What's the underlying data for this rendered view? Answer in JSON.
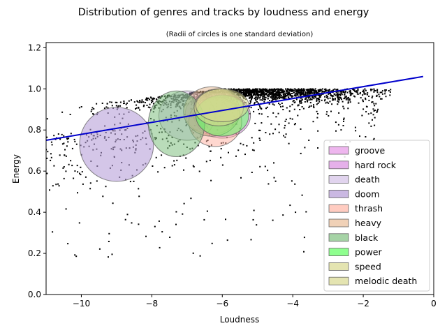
{
  "chart_data": {
    "type": "scatter",
    "title": "Distribution of genres and tracks by loudness and energy",
    "subtitle": "(Radii of circles is one standard deviation)",
    "xlabel": "Loudness",
    "ylabel": "Energy",
    "xlim": [
      -11,
      0
    ],
    "ylim": [
      0,
      1.225
    ],
    "xticks": [
      -10,
      -8,
      -6,
      -4,
      -2,
      0
    ],
    "xtick_labels": [
      "−10",
      "−8",
      "−6",
      "−4",
      "−2",
      "0"
    ],
    "yticks": [
      0.0,
      0.2,
      0.4,
      0.6,
      0.8,
      1.0,
      1.2
    ],
    "ytick_labels": [
      "0.0",
      "0.2",
      "0.4",
      "0.6",
      "0.8",
      "1.0",
      "1.2"
    ],
    "grid": false,
    "legend_position": "lower-right",
    "trend_line": {
      "x": [
        -11,
        -0.3
      ],
      "y": [
        0.75,
        1.06
      ],
      "color": "#0000cc"
    },
    "genres": [
      {
        "name": "groove",
        "color": "#e07ae0",
        "mean_x": -6.3,
        "mean_y": 0.88,
        "sd_x": 0.75,
        "sd_y": 0.1,
        "alpha": 0.4
      },
      {
        "name": "hard rock",
        "color": "#d070d8",
        "mean_x": -6.0,
        "mean_y": 0.87,
        "sd_x": 0.8,
        "sd_y": 0.11,
        "alpha": 0.4
      },
      {
        "name": "death",
        "color": "#c8b0e0",
        "mean_x": -7.0,
        "mean_y": 0.87,
        "sd_x": 0.8,
        "sd_y": 0.12,
        "alpha": 0.4
      },
      {
        "name": "doom",
        "color": "#b8a0d8",
        "mean_x": -9.0,
        "mean_y": 0.73,
        "sd_x": 1.05,
        "sd_y": 0.18,
        "alpha": 0.6
      },
      {
        "name": "thrash",
        "color": "#ffb0a0",
        "mean_x": -6.2,
        "mean_y": 0.84,
        "sd_x": 0.75,
        "sd_y": 0.12,
        "alpha": 0.5
      },
      {
        "name": "heavy",
        "color": "#e8b890",
        "mean_x": -6.3,
        "mean_y": 0.89,
        "sd_x": 0.8,
        "sd_y": 0.12,
        "alpha": 0.5
      },
      {
        "name": "black",
        "color": "#80c080",
        "mean_x": -7.3,
        "mean_y": 0.83,
        "sd_x": 0.8,
        "sd_y": 0.16,
        "alpha": 0.55
      },
      {
        "name": "power",
        "color": "#60ff60",
        "mean_x": -6.0,
        "mean_y": 0.87,
        "sd_x": 0.75,
        "sd_y": 0.1,
        "alpha": 0.55
      },
      {
        "name": "speed",
        "color": "#d8d890",
        "mean_x": -6.1,
        "mean_y": 0.91,
        "sd_x": 0.7,
        "sd_y": 0.09,
        "alpha": 0.55
      },
      {
        "name": "melodic death",
        "color": "#d8d890",
        "mean_x": -6.0,
        "mean_y": 0.92,
        "sd_x": 0.75,
        "sd_y": 0.08,
        "alpha": 0.55
      }
    ],
    "track_point_color": "#000000"
  }
}
